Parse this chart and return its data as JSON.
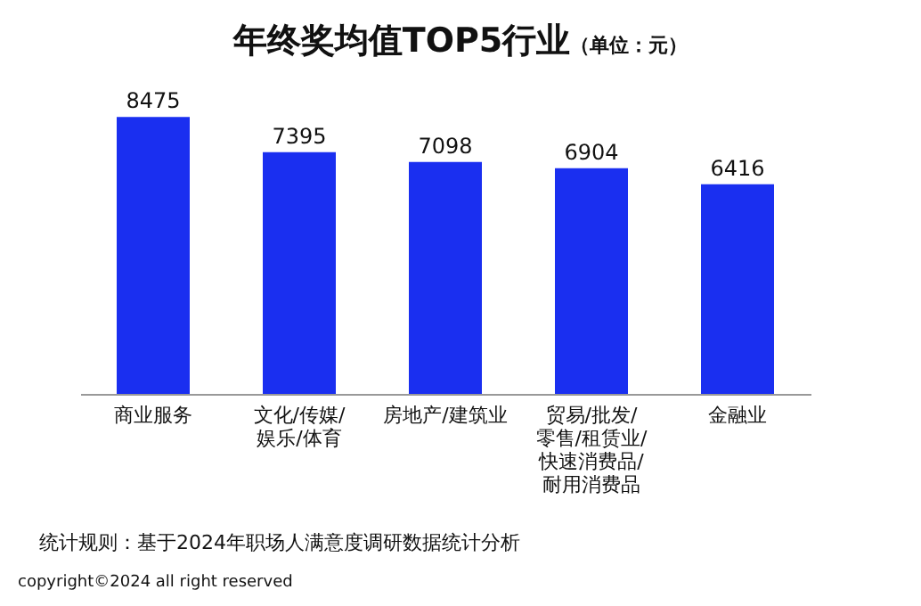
{
  "chart_data": {
    "type": "bar",
    "title": "年终奖均值TOP5行业",
    "subtitle": "（单位：元）",
    "categories": [
      "商业服务",
      "文化/传媒/娱乐/体育",
      "房地产/建筑业",
      "贸易/批发/零售/租赁业/快速消费品/耐用消费品",
      "金融业"
    ],
    "values": [
      8475,
      7395,
      7098,
      6904,
      6416
    ],
    "color": "#1a2ff0",
    "data_labels": true,
    "annotations": [
      "统计规则：基于2024年职场人满意度调研数据统计分析",
      "copyright©2024 all right reserved"
    ]
  }
}
